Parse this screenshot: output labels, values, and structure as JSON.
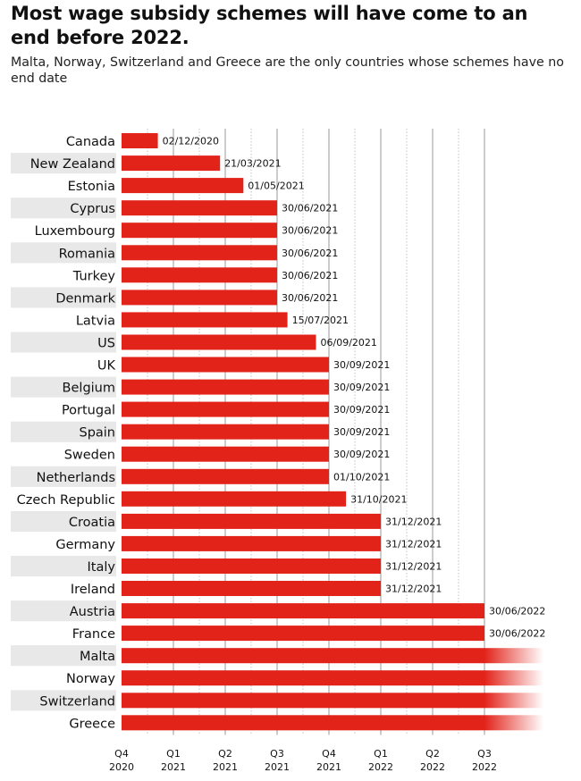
{
  "chart_data": {
    "type": "bar",
    "orientation": "horizontal",
    "title": "Most wage subsidy schemes will have come to an end before 2022.",
    "subtitle": "Malta, Norway, Switzerland and Greece are the only countries whose schemes have no end date",
    "xlabel": "",
    "ylabel": "",
    "x_unit": "quarters since start of Q4 2020",
    "xlim": [
      0,
      8
    ],
    "grid": true,
    "legend": "none",
    "colors": {
      "bar": "#e2231a",
      "stripe": "#e8e8e8",
      "grid": "#9a9a9a"
    },
    "x_ticks": [
      {
        "quarter": "Q4",
        "year": "2020",
        "value": 0
      },
      {
        "quarter": "Q1",
        "year": "2021",
        "value": 1
      },
      {
        "quarter": "Q2",
        "year": "2021",
        "value": 2
      },
      {
        "quarter": "Q3",
        "year": "2021",
        "value": 3
      },
      {
        "quarter": "Q4",
        "year": "2021",
        "value": 4
      },
      {
        "quarter": "Q1",
        "year": "2022",
        "value": 5
      },
      {
        "quarter": "Q2",
        "year": "2022",
        "value": 6
      },
      {
        "quarter": "Q3",
        "year": "2022",
        "value": 7
      }
    ],
    "bars": [
      {
        "country": "Canada",
        "label": "02/12/2020",
        "value": 0.7,
        "open_ended": false
      },
      {
        "country": "New Zealand",
        "label": "21/03/2021",
        "value": 1.9,
        "open_ended": false
      },
      {
        "country": "Estonia",
        "label": "01/05/2021",
        "value": 2.35,
        "open_ended": false
      },
      {
        "country": "Cyprus",
        "label": "30/06/2021",
        "value": 3.0,
        "open_ended": false
      },
      {
        "country": "Luxembourg",
        "label": "30/06/2021",
        "value": 3.0,
        "open_ended": false
      },
      {
        "country": "Romania",
        "label": "30/06/2021",
        "value": 3.0,
        "open_ended": false
      },
      {
        "country": "Turkey",
        "label": "30/06/2021",
        "value": 3.0,
        "open_ended": false
      },
      {
        "country": "Denmark",
        "label": "30/06/2021",
        "value": 3.0,
        "open_ended": false
      },
      {
        "country": "Latvia",
        "label": "15/07/2021",
        "value": 3.2,
        "open_ended": false
      },
      {
        "country": "US",
        "label": "06/09/2021",
        "value": 3.75,
        "open_ended": false
      },
      {
        "country": "UK",
        "label": "30/09/2021",
        "value": 4.0,
        "open_ended": false
      },
      {
        "country": "Belgium",
        "label": "30/09/2021",
        "value": 4.0,
        "open_ended": false
      },
      {
        "country": "Portugal",
        "label": "30/09/2021",
        "value": 4.0,
        "open_ended": false
      },
      {
        "country": "Spain",
        "label": "30/09/2021",
        "value": 4.0,
        "open_ended": false
      },
      {
        "country": "Sweden",
        "label": "30/09/2021",
        "value": 4.0,
        "open_ended": false
      },
      {
        "country": "Netherlands",
        "label": "01/10/2021",
        "value": 4.0,
        "open_ended": false
      },
      {
        "country": "Czech Republic",
        "label": "31/10/2021",
        "value": 4.33,
        "open_ended": false
      },
      {
        "country": "Croatia",
        "label": "31/12/2021",
        "value": 5.0,
        "open_ended": false
      },
      {
        "country": "Germany",
        "label": "31/12/2021",
        "value": 5.0,
        "open_ended": false
      },
      {
        "country": "Italy",
        "label": "31/12/2021",
        "value": 5.0,
        "open_ended": false
      },
      {
        "country": "Ireland",
        "label": "31/12/2021",
        "value": 5.0,
        "open_ended": false
      },
      {
        "country": "Austria",
        "label": "30/06/2022",
        "value": 7.0,
        "open_ended": false
      },
      {
        "country": "France",
        "label": "30/06/2022",
        "value": 7.0,
        "open_ended": false
      },
      {
        "country": "Malta",
        "label": "",
        "value": 7.0,
        "open_ended": true
      },
      {
        "country": "Norway",
        "label": "",
        "value": 7.0,
        "open_ended": true
      },
      {
        "country": "Switzerland",
        "label": "",
        "value": 7.0,
        "open_ended": true
      },
      {
        "country": "Greece",
        "label": "",
        "value": 7.0,
        "open_ended": true
      }
    ]
  }
}
